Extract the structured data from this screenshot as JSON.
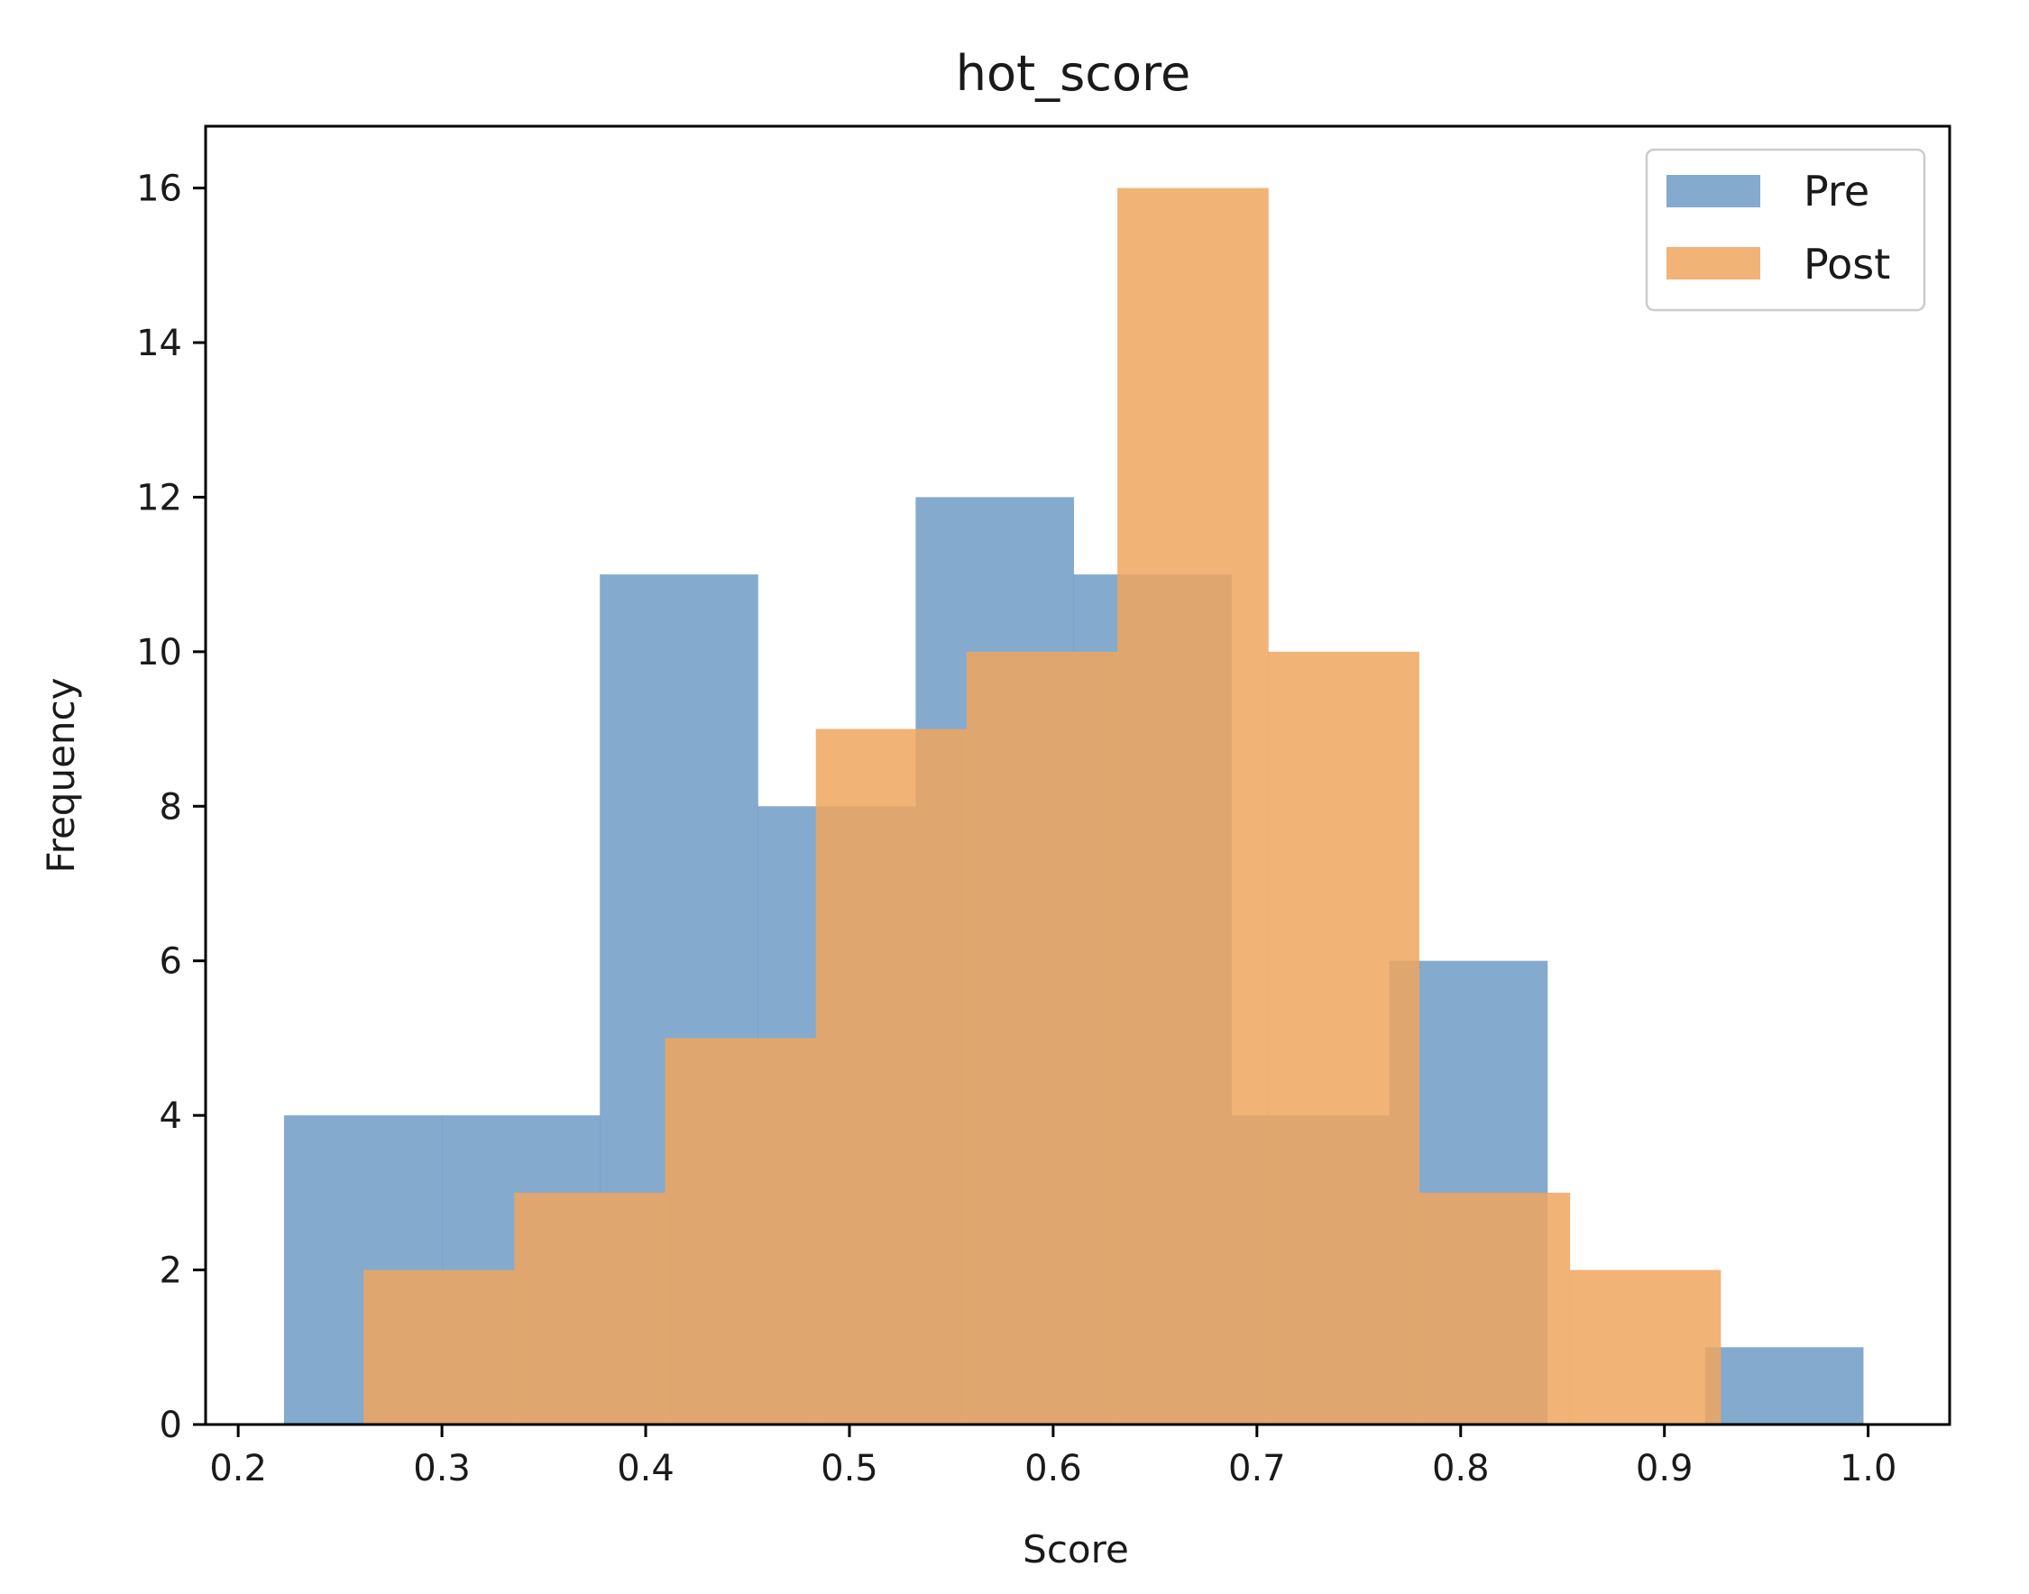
{
  "chart_data": {
    "type": "histogram",
    "title": "hot_score",
    "xlabel": "Score",
    "ylabel": "Frequency",
    "xlim": [
      0.184,
      1.04
    ],
    "ylim": [
      0,
      16.8
    ],
    "x_ticks": [
      0.2,
      0.3,
      0.4,
      0.5,
      0.6,
      0.7,
      0.8,
      0.9,
      1.0
    ],
    "x_tick_labels": [
      "0.2",
      "0.3",
      "0.4",
      "0.5",
      "0.6",
      "0.7",
      "0.8",
      "0.9",
      "1.0"
    ],
    "y_ticks": [
      0,
      2,
      4,
      6,
      8,
      10,
      12,
      14,
      16
    ],
    "y_tick_labels": [
      "0",
      "2",
      "4",
      "6",
      "8",
      "10",
      "12",
      "14",
      "16"
    ],
    "grid": false,
    "legend_position": "top-right",
    "series": [
      {
        "name": "Pre",
        "color": "#6f9bc6",
        "bin_edges": [
          0.2225,
          0.3,
          0.3775,
          0.455,
          0.5325,
          0.61,
          0.6875,
          0.765,
          0.8425,
          0.92,
          0.9975
        ],
        "counts": [
          4,
          4,
          11,
          8,
          12,
          11,
          4,
          6,
          0,
          1
        ]
      },
      {
        "name": "Post",
        "color": "#f0a65f",
        "bin_edges": [
          0.2615,
          0.3355,
          0.4095,
          0.4835,
          0.5575,
          0.6315,
          0.7055,
          0.7795,
          0.8535,
          0.9275,
          1.0015
        ],
        "counts": [
          2,
          3,
          5,
          9,
          10,
          16,
          10,
          3,
          2,
          0
        ]
      }
    ]
  }
}
